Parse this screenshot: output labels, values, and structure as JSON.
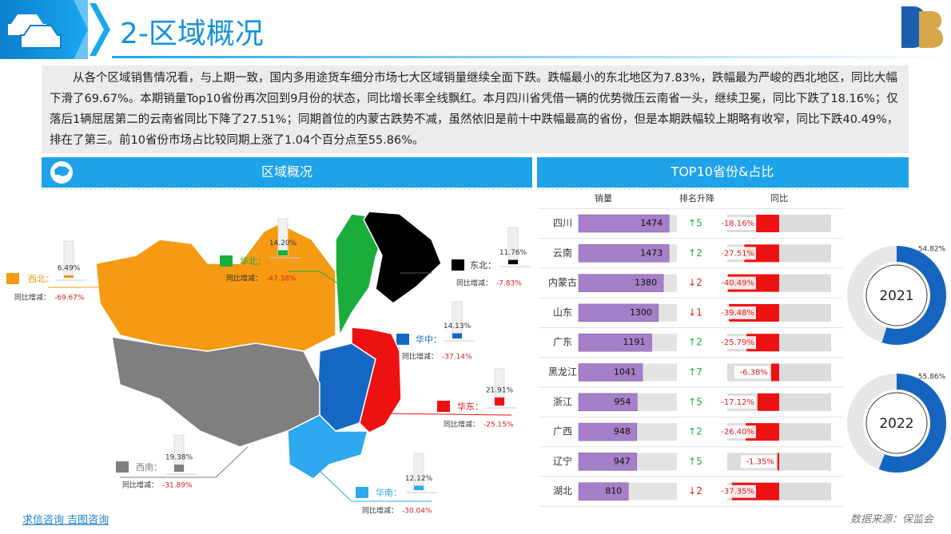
{
  "header": {
    "title": "2-区域概况"
  },
  "paragraph": "从各个区域销售情况看，与上期一致，国内多用途货车细分市场七大区域销量继续全面下跌。跌幅最小的东北地区为7.83%，跌幅最为严峻的西北地区，同比大幅下滑了69.67%。本期销量Top10省份再次回到9月份的状态，同比增长率全线飘红。本月四川省凭借一辆的优势微压云南省一头，继续卫冕，同比下跌了18.16%；仅落后1辆屈居第二的云南省同比下降了27.51%；同期首位的内蒙古跌势不减，虽然依旧是前十中跌幅最高的省份，但是本期跌幅较上期略有收窄，同比下跌40.49%，排在了第三。前10省份市场占比较同期上涨了1.04个百分点至55.86%。",
  "chart_data": [
    {
      "type": "map",
      "title": "区域概况",
      "categories": [
        "西北：",
        "华北：",
        "东北：",
        "华中：",
        "华东：",
        "西南：",
        "华南："
      ],
      "colors": [
        "#f59a12",
        "#1aad3c",
        "#000000",
        "#1567c4",
        "#ee1111",
        "#7f7f7f",
        "#2ea8ef"
      ],
      "values": [
        6.49,
        14.2,
        11.76,
        14.13,
        21.91,
        19.38,
        12.12
      ],
      "value_labels": [
        "6.49%",
        "14.20%",
        "11.76%",
        "14.13%",
        "21.91%",
        "19.38%",
        "12.12%"
      ],
      "ylim": [
        0,
        100
      ],
      "change_title": "同比增减：",
      "changes": [
        -69.67,
        -47.38,
        -7.83,
        -37.14,
        -25.15,
        -31.89,
        -30.04
      ],
      "change_labels": [
        "-69.67%",
        "-47.38%",
        "-7.83%",
        "-37.14%",
        "-25.15%",
        "-31.89%",
        "-30.04%"
      ]
    },
    {
      "type": "bar",
      "orientation": "horizontal",
      "title": "TOP10省份&占比",
      "value_title": "销量",
      "categories": [
        "四川",
        "云南",
        "内蒙古",
        "山东",
        "广东",
        "黑龙江",
        "浙江",
        "广西",
        "辽宁",
        "湖北"
      ],
      "values": [
        1474,
        1473,
        1380,
        1300,
        1191,
        1041,
        954,
        948,
        947,
        810
      ],
      "xlim": [
        0,
        1600
      ],
      "color": "#a57fc7",
      "rank_title": "排名升降",
      "rank_changes": [
        "↑5",
        "↑2",
        "↓2",
        "↓1",
        "↑2",
        "↑7",
        "↑5",
        "↑2",
        "↑5",
        "↓2"
      ]
    },
    {
      "type": "bar",
      "orientation": "horizontal",
      "title": "同比",
      "values": [
        -18.16,
        -27.51,
        -40.49,
        -39.48,
        -25.79,
        -6.38,
        -17.12,
        -26.4,
        -1.35,
        -37.35
      ],
      "value_labels": [
        "-18.16%",
        "-27.51%",
        "-40.49%",
        "-39.48%",
        "-25.79%",
        "-6.38%",
        "-17.12%",
        "-26.40%",
        "-1.35%",
        "-37.35%"
      ],
      "xlim": [
        -41,
        41
      ],
      "color": "#ee1111"
    },
    {
      "type": "pie",
      "categories": [
        "2021",
        "2022"
      ],
      "values": [
        54.82,
        55.86
      ],
      "value_labels": [
        "54.82%",
        "55.86%"
      ],
      "ylim": [
        0,
        100
      ],
      "color": "#1565c0"
    }
  ],
  "footer": {
    "left": "求信咨询  吉图咨询",
    "source": "数据来源：保监会"
  }
}
